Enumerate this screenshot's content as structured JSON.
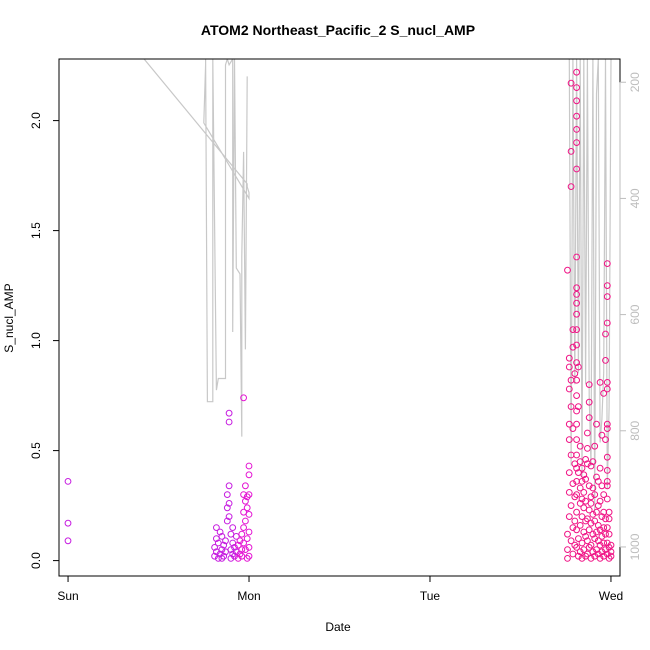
{
  "chart_data": {
    "type": "scatter",
    "title": "ATOM2 Northeast_Pacific_2 S_nucl_AMP",
    "xlabel": "Date",
    "ylabel": "S_nucl_AMP",
    "x_unit": "days",
    "xlim": [
      -0.05,
      3.05
    ],
    "ylim": [
      -0.07,
      2.28
    ],
    "x_ticks": [
      {
        "value": 0,
        "label": "Sun"
      },
      {
        "value": 1,
        "label": "Mon"
      },
      {
        "value": 2,
        "label": "Tue"
      },
      {
        "value": 3,
        "label": "Wed"
      }
    ],
    "y_ticks": [
      0.0,
      0.5,
      1.0,
      1.5,
      2.0
    ],
    "y_tick_labels": [
      "0.0",
      "0.5",
      "1.0",
      "1.5",
      "2.0"
    ],
    "y2_ticks": [
      200,
      400,
      600,
      800,
      1000
    ],
    "y2_tick_labels": [
      "200",
      "400",
      "600",
      "800",
      "1000"
    ],
    "y2lim": [
      160,
      1050
    ],
    "colors": {
      "points_early": "#c61ce0",
      "points_mid": "#e414d3",
      "points_late": "#f01486",
      "altitude_line": "#c8c8c8",
      "axis": "#000000",
      "right_axis": "#bdbdbd"
    },
    "series": [
      {
        "type": "scatter",
        "values": [
          [
            0.0,
            0.36
          ],
          [
            0.0,
            0.17
          ],
          [
            0.0,
            0.09
          ],
          [
            0.81,
            0.02
          ],
          [
            0.81,
            0.06
          ],
          [
            0.82,
            0.15
          ],
          [
            0.82,
            0.1
          ],
          [
            0.82,
            0.04
          ],
          [
            0.83,
            0.01
          ],
          [
            0.83,
            0.08
          ],
          [
            0.84,
            0.13
          ],
          [
            0.84,
            0.03
          ],
          [
            0.85,
            0.05
          ],
          [
            0.85,
            0.11
          ],
          [
            0.85,
            0.01
          ],
          [
            0.86,
            0.07
          ],
          [
            0.86,
            0.02
          ],
          [
            0.87,
            0.04
          ],
          [
            0.87,
            0.09
          ],
          [
            0.88,
            0.18
          ],
          [
            0.88,
            0.24
          ],
          [
            0.88,
            0.3
          ],
          [
            0.89,
            0.34
          ],
          [
            0.89,
            0.26
          ],
          [
            0.89,
            0.2
          ],
          [
            0.89,
            0.67
          ],
          [
            0.89,
            0.63
          ],
          [
            0.9,
            0.12
          ],
          [
            0.9,
            0.05
          ],
          [
            0.9,
            0.01
          ],
          [
            0.91,
            0.08
          ],
          [
            0.91,
            0.15
          ],
          [
            0.91,
            0.03
          ],
          [
            0.92,
            0.02
          ],
          [
            0.92,
            0.06
          ],
          [
            0.93,
            0.11
          ],
          [
            0.93,
            0.04
          ],
          [
            0.94,
            0.01
          ],
          [
            0.94,
            0.07
          ],
          [
            0.95,
            0.03
          ],
          [
            0.95,
            0.09
          ],
          [
            0.96,
            0.12
          ],
          [
            0.96,
            0.05
          ],
          [
            0.96,
            0.02
          ],
          [
            0.97,
            0.08
          ],
          [
            0.97,
            0.3
          ],
          [
            0.97,
            0.74
          ],
          [
            0.97,
            0.22
          ],
          [
            0.97,
            0.15
          ],
          [
            0.98,
            0.18
          ],
          [
            0.98,
            0.27
          ],
          [
            0.98,
            0.34
          ],
          [
            0.98,
            0.05
          ],
          [
            0.99,
            0.1
          ],
          [
            0.99,
            0.24
          ],
          [
            0.99,
            0.01
          ],
          [
            0.99,
            0.29
          ],
          [
            1.0,
            0.21
          ],
          [
            1.0,
            0.43
          ],
          [
            1.0,
            0.39
          ],
          [
            1.0,
            0.3
          ],
          [
            1.0,
            0.13
          ],
          [
            1.0,
            0.06
          ],
          [
            1.0,
            0.02
          ]
        ]
      },
      {
        "type": "scatter",
        "values": [
          [
            2.76,
            0.01
          ],
          [
            2.76,
            0.05
          ],
          [
            2.76,
            0.12
          ],
          [
            2.76,
            1.32
          ],
          [
            2.77,
            0.88
          ],
          [
            2.77,
            0.92
          ],
          [
            2.77,
            0.78
          ],
          [
            2.77,
            0.62
          ],
          [
            2.77,
            0.55
          ],
          [
            2.77,
            0.4
          ],
          [
            2.77,
            0.31
          ],
          [
            2.77,
            0.2
          ],
          [
            2.78,
            2.17
          ],
          [
            2.78,
            1.86
          ],
          [
            2.78,
            1.7
          ],
          [
            2.78,
            0.82
          ],
          [
            2.78,
            0.7
          ],
          [
            2.78,
            0.48
          ],
          [
            2.78,
            0.25
          ],
          [
            2.78,
            0.09
          ],
          [
            2.79,
            0.03
          ],
          [
            2.79,
            0.15
          ],
          [
            2.79,
            0.35
          ],
          [
            2.79,
            0.97
          ],
          [
            2.79,
            1.05
          ],
          [
            2.79,
            0.6
          ],
          [
            2.8,
            0.44
          ],
          [
            2.8,
            0.07
          ],
          [
            2.8,
            0.18
          ],
          [
            2.8,
            0.29
          ],
          [
            2.8,
            0.85
          ],
          [
            2.81,
            2.22
          ],
          [
            2.81,
            2.15
          ],
          [
            2.81,
            2.09
          ],
          [
            2.81,
            2.02
          ],
          [
            2.81,
            1.96
          ],
          [
            2.81,
            1.9
          ],
          [
            2.81,
            1.78
          ],
          [
            2.81,
            1.38
          ],
          [
            2.81,
            1.24
          ],
          [
            2.81,
            1.21
          ],
          [
            2.81,
            1.17
          ],
          [
            2.81,
            1.12
          ],
          [
            2.81,
            1.05
          ],
          [
            2.81,
            0.98
          ],
          [
            2.81,
            0.9
          ],
          [
            2.81,
            0.82
          ],
          [
            2.81,
            0.75
          ],
          [
            2.81,
            0.68
          ],
          [
            2.81,
            0.62
          ],
          [
            2.81,
            0.55
          ],
          [
            2.81,
            0.48
          ],
          [
            2.81,
            0.42
          ],
          [
            2.81,
            0.36
          ],
          [
            2.81,
            0.3
          ],
          [
            2.81,
            0.22
          ],
          [
            2.81,
            0.14
          ],
          [
            2.81,
            0.06
          ],
          [
            2.82,
            0.02
          ],
          [
            2.82,
            0.1
          ],
          [
            2.82,
            0.4
          ],
          [
            2.82,
            0.88
          ],
          [
            2.82,
            0.7
          ],
          [
            2.83,
            0.04
          ],
          [
            2.83,
            0.16
          ],
          [
            2.83,
            0.26
          ],
          [
            2.83,
            0.33
          ],
          [
            2.83,
            0.45
          ],
          [
            2.83,
            0.52
          ],
          [
            2.84,
            0.01
          ],
          [
            2.84,
            0.08
          ],
          [
            2.84,
            0.2
          ],
          [
            2.84,
            0.28
          ],
          [
            2.84,
            0.36
          ],
          [
            2.84,
            0.42
          ],
          [
            2.85,
            0.05
          ],
          [
            2.85,
            0.13
          ],
          [
            2.85,
            0.24
          ],
          [
            2.85,
            0.31
          ],
          [
            2.85,
            0.39
          ],
          [
            2.86,
            0.02
          ],
          [
            2.86,
            0.11
          ],
          [
            2.86,
            0.18
          ],
          [
            2.86,
            0.27
          ],
          [
            2.86,
            0.37
          ],
          [
            2.86,
            0.46
          ],
          [
            2.87,
            0.03
          ],
          [
            2.87,
            0.09
          ],
          [
            2.87,
            0.19
          ],
          [
            2.87,
            0.44
          ],
          [
            2.87,
            0.51
          ],
          [
            2.87,
            0.58
          ],
          [
            2.88,
            0.06
          ],
          [
            2.88,
            0.14
          ],
          [
            2.88,
            0.23
          ],
          [
            2.88,
            0.34
          ],
          [
            2.88,
            0.65
          ],
          [
            2.88,
            0.72
          ],
          [
            2.88,
            0.8
          ],
          [
            2.89,
            0.01
          ],
          [
            2.89,
            0.07
          ],
          [
            2.89,
            0.17
          ],
          [
            2.89,
            0.26
          ],
          [
            2.89,
            0.29
          ],
          [
            2.89,
            0.43
          ],
          [
            2.9,
            0.04
          ],
          [
            2.9,
            0.12
          ],
          [
            2.9,
            0.21
          ],
          [
            2.9,
            0.33
          ],
          [
            2.9,
            0.45
          ],
          [
            2.91,
            0.02
          ],
          [
            2.91,
            0.1
          ],
          [
            2.91,
            0.18
          ],
          [
            2.91,
            0.3
          ],
          [
            2.91,
            0.52
          ],
          [
            2.92,
            0.05
          ],
          [
            2.92,
            0.13
          ],
          [
            2.92,
            0.22
          ],
          [
            2.92,
            0.38
          ],
          [
            2.92,
            0.62
          ],
          [
            2.93,
            0.03
          ],
          [
            2.93,
            0.09
          ],
          [
            2.93,
            0.16
          ],
          [
            2.93,
            0.25
          ],
          [
            2.93,
            0.36
          ],
          [
            2.94,
            0.01
          ],
          [
            2.94,
            0.07
          ],
          [
            2.94,
            0.14
          ],
          [
            2.94,
            0.27
          ],
          [
            2.94,
            0.42
          ],
          [
            2.94,
            0.81
          ],
          [
            2.95,
            0.04
          ],
          [
            2.95,
            0.11
          ],
          [
            2.95,
            0.2
          ],
          [
            2.95,
            0.34
          ],
          [
            2.95,
            0.57
          ],
          [
            2.96,
            0.02
          ],
          [
            2.96,
            0.08
          ],
          [
            2.96,
            0.15
          ],
          [
            2.96,
            0.22
          ],
          [
            2.96,
            0.3
          ],
          [
            2.96,
            0.76
          ],
          [
            2.97,
            0.05
          ],
          [
            2.97,
            0.12
          ],
          [
            2.97,
            0.19
          ],
          [
            2.97,
            0.91
          ],
          [
            2.97,
            1.03
          ],
          [
            2.97,
            0.55
          ],
          [
            2.98,
            1.35
          ],
          [
            2.98,
            1.25
          ],
          [
            2.98,
            1.2
          ],
          [
            2.98,
            1.08
          ],
          [
            2.98,
            0.81
          ],
          [
            2.98,
            0.78
          ],
          [
            2.98,
            0.62
          ],
          [
            2.98,
            0.6
          ],
          [
            2.98,
            0.47
          ],
          [
            2.98,
            0.41
          ],
          [
            2.98,
            0.36
          ],
          [
            2.98,
            0.34
          ],
          [
            2.98,
            0.28
          ],
          [
            2.98,
            0.15
          ],
          [
            2.98,
            0.08
          ],
          [
            2.98,
            0.03
          ],
          [
            2.99,
            0.01
          ],
          [
            2.99,
            0.06
          ],
          [
            2.99,
            0.12
          ],
          [
            2.99,
            0.19
          ],
          [
            2.99,
            0.22
          ],
          [
            3.0,
            0.02
          ],
          [
            3.0,
            0.07
          ],
          [
            3.0,
            0.04
          ]
        ]
      },
      {
        "type": "line",
        "axis": "right",
        "values": [
          [
            0.42,
            160
          ],
          [
            0.99,
            375
          ],
          [
            0.99,
            380
          ],
          [
            1.0,
            390
          ],
          [
            1.0,
            400
          ],
          [
            0.75,
            270
          ],
          [
            0.76,
            170
          ],
          [
            0.76,
            160
          ],
          [
            0.77,
            750
          ],
          [
            0.8,
            750
          ],
          [
            0.8,
            160
          ],
          [
            0.82,
            730
          ],
          [
            0.83,
            710
          ],
          [
            0.83,
            710
          ],
          [
            0.87,
            710
          ],
          [
            0.87,
            170
          ],
          [
            0.88,
            160
          ],
          [
            0.89,
            170
          ],
          [
            0.91,
            160
          ],
          [
            0.91,
            630
          ],
          [
            0.92,
            160
          ],
          [
            0.93,
            520
          ],
          [
            0.95,
            530
          ],
          [
            0.96,
            810
          ],
          [
            0.96,
            500
          ],
          [
            0.97,
            320
          ],
          [
            0.98,
            660
          ],
          [
            0.99,
            190
          ]
        ]
      },
      {
        "type": "line",
        "axis": "right",
        "values": [
          [
            2.77,
            160
          ],
          [
            2.78,
            860
          ],
          [
            2.79,
            160
          ],
          [
            2.8,
            720
          ],
          [
            2.81,
            160
          ],
          [
            2.82,
            700
          ],
          [
            2.83,
            160
          ],
          [
            2.84,
            880
          ],
          [
            2.85,
            160
          ],
          [
            2.86,
            720
          ],
          [
            2.87,
            160
          ],
          [
            2.88,
            740
          ],
          [
            2.89,
            860
          ],
          [
            2.9,
            160
          ],
          [
            2.91,
            940
          ],
          [
            2.92,
            220
          ],
          [
            2.93,
            160
          ],
          [
            2.94,
            820
          ],
          [
            2.95,
            780
          ],
          [
            2.96,
            700
          ],
          [
            2.97,
            160
          ],
          [
            2.98,
            900
          ],
          [
            2.99,
            760
          ],
          [
            3.0,
            160
          ]
        ]
      }
    ]
  }
}
